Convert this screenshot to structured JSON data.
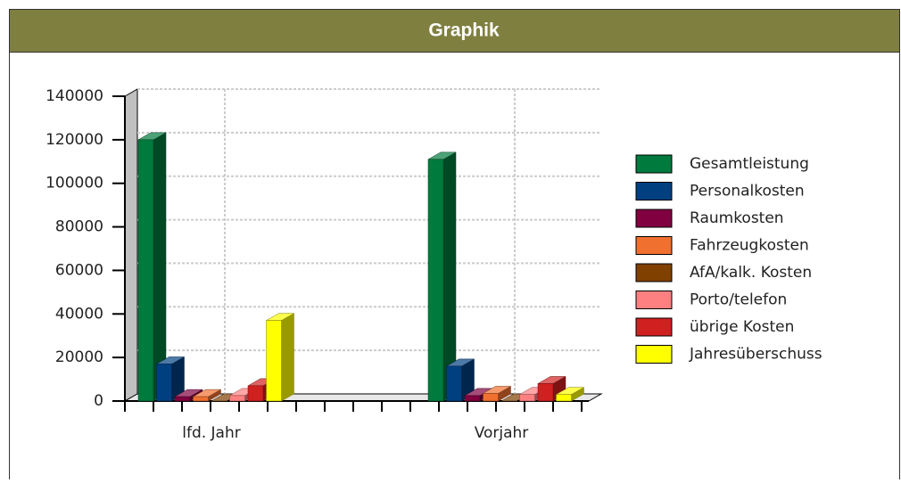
{
  "chart_data": {
    "type": "bar3d",
    "title": "Graphik",
    "categories": [
      "lfd. Jahr",
      "Vorjahr"
    ],
    "series": [
      {
        "name": "Gesamtleistung",
        "color": "#007a3d",
        "values": [
          120000,
          111000
        ]
      },
      {
        "name": "Personalkosten",
        "color": "#004080",
        "values": [
          17000,
          16000
        ]
      },
      {
        "name": "Raumkosten",
        "color": "#800040",
        "values": [
          2000,
          2500
        ]
      },
      {
        "name": "Fahrzeugkosten",
        "color": "#f07030",
        "values": [
          2000,
          3500
        ]
      },
      {
        "name": "AfA/kalk. Kosten",
        "color": "#804000",
        "values": [
          0,
          0
        ]
      },
      {
        "name": "Porto/telefon",
        "color": "#ff8080",
        "values": [
          2500,
          3000
        ]
      },
      {
        "name": "übrige Kosten",
        "color": "#d02020",
        "values": [
          7000,
          8000
        ]
      },
      {
        "name": "Jahresüberschuss",
        "color": "#ffff00",
        "values": [
          37000,
          3000
        ]
      }
    ],
    "ylim": [
      0,
      140000
    ],
    "yticks": [
      0,
      20000,
      40000,
      60000,
      80000,
      100000,
      120000,
      140000
    ],
    "grid": true,
    "legend": "right"
  }
}
